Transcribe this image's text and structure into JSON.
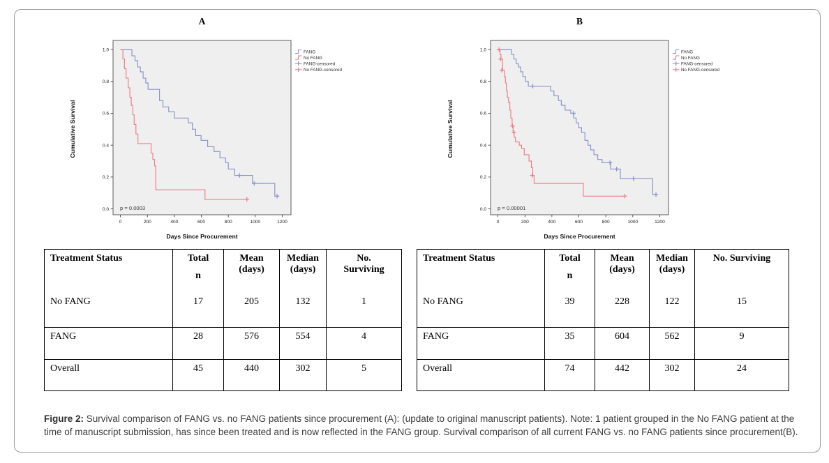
{
  "accent_colors": {
    "fang_blue": "#8894c9",
    "no_fang_red": "#ee7d87",
    "plot_bg": "#efefef",
    "plot_border": "#4d4d4d"
  },
  "chart_data": [
    {
      "type": "line",
      "panel_label": "A",
      "title": "A",
      "xlabel": "Days Since Procurement",
      "ylabel": "Cumulative Survival",
      "p_value": "p = 0.0003",
      "x_ticks": [
        0,
        200,
        400,
        600,
        800,
        1000,
        1200
      ],
      "y_ticks": [
        "0.0",
        "0.2",
        "0.4",
        "0.6",
        "0.8",
        "1.0"
      ],
      "xlim": [
        -55,
        1265
      ],
      "ylim": [
        0,
        1
      ],
      "grid": false,
      "legend_position": "right-top",
      "legend": [
        "FANG",
        "No FANG",
        "FANG-censored",
        "No FANG-censored"
      ],
      "series": [
        {
          "name": "FANG",
          "color": "#8894c9",
          "points": [
            [
              0,
              1.0
            ],
            [
              85,
              1.0
            ],
            [
              85,
              0.96
            ],
            [
              108,
              0.96
            ],
            [
              108,
              0.93
            ],
            [
              128,
              0.93
            ],
            [
              128,
              0.89
            ],
            [
              148,
              0.89
            ],
            [
              148,
              0.86
            ],
            [
              168,
              0.86
            ],
            [
              168,
              0.82
            ],
            [
              188,
              0.82
            ],
            [
              188,
              0.79
            ],
            [
              205,
              0.79
            ],
            [
              205,
              0.75
            ],
            [
              290,
              0.75
            ],
            [
              290,
              0.68
            ],
            [
              315,
              0.68
            ],
            [
              315,
              0.64
            ],
            [
              358,
              0.64
            ],
            [
              358,
              0.61
            ],
            [
              400,
              0.61
            ],
            [
              400,
              0.57
            ],
            [
              503,
              0.57
            ],
            [
              503,
              0.54
            ],
            [
              533,
              0.54
            ],
            [
              533,
              0.5
            ],
            [
              558,
              0.5
            ],
            [
              558,
              0.46
            ],
            [
              598,
              0.46
            ],
            [
              598,
              0.43
            ],
            [
              647,
              0.43
            ],
            [
              647,
              0.39
            ],
            [
              694,
              0.39
            ],
            [
              694,
              0.36
            ],
            [
              738,
              0.36
            ],
            [
              738,
              0.32
            ],
            [
              780,
              0.32
            ],
            [
              780,
              0.29
            ],
            [
              800,
              0.29
            ],
            [
              800,
              0.25
            ],
            [
              848,
              0.25
            ],
            [
              848,
              0.21
            ],
            [
              980,
              0.21
            ],
            [
              980,
              0.16
            ],
            [
              1145,
              0.16
            ],
            [
              1145,
              0.08
            ],
            [
              1168,
              0.08
            ]
          ],
          "censors": [
            [
              883,
              0.21
            ],
            [
              992,
              0.16
            ],
            [
              1162,
              0.08
            ]
          ]
        },
        {
          "name": "No FANG",
          "color": "#ee7d87",
          "points": [
            [
              0,
              1.0
            ],
            [
              18,
              1.0
            ],
            [
              18,
              0.94
            ],
            [
              30,
              0.94
            ],
            [
              30,
              0.88
            ],
            [
              42,
              0.88
            ],
            [
              42,
              0.82
            ],
            [
              58,
              0.82
            ],
            [
              58,
              0.76
            ],
            [
              70,
              0.76
            ],
            [
              70,
              0.7
            ],
            [
              80,
              0.7
            ],
            [
              80,
              0.65
            ],
            [
              92,
              0.65
            ],
            [
              92,
              0.59
            ],
            [
              102,
              0.59
            ],
            [
              102,
              0.53
            ],
            [
              115,
              0.53
            ],
            [
              115,
              0.47
            ],
            [
              130,
              0.47
            ],
            [
              130,
              0.41
            ],
            [
              227,
              0.41
            ],
            [
              227,
              0.35
            ],
            [
              240,
              0.35
            ],
            [
              240,
              0.31
            ],
            [
              253,
              0.31
            ],
            [
              253,
              0.27
            ],
            [
              262,
              0.27
            ],
            [
              262,
              0.12
            ],
            [
              627,
              0.12
            ],
            [
              627,
              0.06
            ],
            [
              940,
              0.06
            ]
          ],
          "censors": [
            [
              938,
              0.06
            ]
          ]
        }
      ]
    },
    {
      "type": "line",
      "panel_label": "B",
      "title": "B",
      "xlabel": "Days Since Procurement",
      "ylabel": "Cumulative Survival",
      "p_value": "p = 0.00001",
      "x_ticks": [
        0,
        200,
        400,
        600,
        800,
        1000,
        1200
      ],
      "y_ticks": [
        "0.0",
        "0.2",
        "0.4",
        "0.6",
        "0.8",
        "1.0"
      ],
      "xlim": [
        -55,
        1265
      ],
      "ylim": [
        0,
        1
      ],
      "grid": false,
      "legend_position": "right-top",
      "legend": [
        "FANG",
        "No FANG",
        "FANG-censored",
        "No FANG-censored"
      ],
      "series": [
        {
          "name": "FANG",
          "color": "#8894c9",
          "points": [
            [
              0,
              1.0
            ],
            [
              100,
              1.0
            ],
            [
              100,
              0.97
            ],
            [
              118,
              0.97
            ],
            [
              118,
              0.94
            ],
            [
              135,
              0.94
            ],
            [
              135,
              0.91
            ],
            [
              152,
              0.91
            ],
            [
              152,
              0.89
            ],
            [
              168,
              0.89
            ],
            [
              168,
              0.86
            ],
            [
              185,
              0.86
            ],
            [
              185,
              0.83
            ],
            [
              205,
              0.83
            ],
            [
              205,
              0.8
            ],
            [
              225,
              0.8
            ],
            [
              225,
              0.77
            ],
            [
              390,
              0.77
            ],
            [
              390,
              0.74
            ],
            [
              415,
              0.74
            ],
            [
              415,
              0.71
            ],
            [
              448,
              0.71
            ],
            [
              448,
              0.68
            ],
            [
              470,
              0.68
            ],
            [
              470,
              0.65
            ],
            [
              498,
              0.65
            ],
            [
              498,
              0.62
            ],
            [
              540,
              0.62
            ],
            [
              540,
              0.6
            ],
            [
              562,
              0.6
            ],
            [
              562,
              0.57
            ],
            [
              580,
              0.57
            ],
            [
              580,
              0.54
            ],
            [
              598,
              0.54
            ],
            [
              598,
              0.51
            ],
            [
              620,
              0.51
            ],
            [
              620,
              0.48
            ],
            [
              645,
              0.48
            ],
            [
              645,
              0.43
            ],
            [
              668,
              0.43
            ],
            [
              668,
              0.4
            ],
            [
              688,
              0.4
            ],
            [
              688,
              0.37
            ],
            [
              712,
              0.37
            ],
            [
              712,
              0.34
            ],
            [
              740,
              0.34
            ],
            [
              740,
              0.31
            ],
            [
              772,
              0.31
            ],
            [
              772,
              0.29
            ],
            [
              835,
              0.29
            ],
            [
              835,
              0.25
            ],
            [
              908,
              0.25
            ],
            [
              908,
              0.19
            ],
            [
              1148,
              0.19
            ],
            [
              1148,
              0.09
            ],
            [
              1178,
              0.09
            ]
          ],
          "censors": [
            [
              258,
              0.77
            ],
            [
              560,
              0.6
            ],
            [
              831,
              0.29
            ],
            [
              880,
              0.25
            ],
            [
              1005,
              0.19
            ],
            [
              1172,
              0.09
            ]
          ]
        },
        {
          "name": "No FANG",
          "color": "#ee7d87",
          "points": [
            [
              0,
              1.0
            ],
            [
              15,
              1.0
            ],
            [
              15,
              0.97
            ],
            [
              22,
              0.97
            ],
            [
              22,
              0.94
            ],
            [
              35,
              0.94
            ],
            [
              35,
              0.87
            ],
            [
              48,
              0.87
            ],
            [
              48,
              0.83
            ],
            [
              55,
              0.83
            ],
            [
              55,
              0.79
            ],
            [
              62,
              0.79
            ],
            [
              62,
              0.74
            ],
            [
              70,
              0.74
            ],
            [
              70,
              0.7
            ],
            [
              78,
              0.7
            ],
            [
              78,
              0.67
            ],
            [
              88,
              0.67
            ],
            [
              88,
              0.62
            ],
            [
              95,
              0.62
            ],
            [
              95,
              0.57
            ],
            [
              105,
              0.57
            ],
            [
              105,
              0.52
            ],
            [
              112,
              0.52
            ],
            [
              112,
              0.48
            ],
            [
              120,
              0.48
            ],
            [
              120,
              0.45
            ],
            [
              130,
              0.45
            ],
            [
              130,
              0.42
            ],
            [
              158,
              0.42
            ],
            [
              158,
              0.4
            ],
            [
              175,
              0.4
            ],
            [
              175,
              0.38
            ],
            [
              195,
              0.38
            ],
            [
              195,
              0.34
            ],
            [
              230,
              0.34
            ],
            [
              230,
              0.3
            ],
            [
              248,
              0.3
            ],
            [
              248,
              0.26
            ],
            [
              258,
              0.26
            ],
            [
              258,
              0.21
            ],
            [
              268,
              0.21
            ],
            [
              268,
              0.16
            ],
            [
              633,
              0.16
            ],
            [
              633,
              0.08
            ],
            [
              944,
              0.08
            ]
          ],
          "censors": [
            [
              8,
              1.0
            ],
            [
              20,
              0.94
            ],
            [
              28,
              0.87
            ],
            [
              108,
              0.52
            ],
            [
              118,
              0.48
            ],
            [
              255,
              0.21
            ],
            [
              940,
              0.08
            ]
          ]
        }
      ]
    }
  ],
  "tables": [
    {
      "header": {
        "col0": "Treatment Status",
        "total_l1": "Total",
        "total_l2": "n",
        "mean_l1": "Mean",
        "mean_l2": "(days)",
        "median_l1": "Median",
        "median_l2": "(days)",
        "surv_l1": "No.",
        "surv_l2": "Surviving"
      },
      "rows": [
        {
          "label": "No FANG",
          "total": "17",
          "mean": "205",
          "median": "132",
          "surviving": "1"
        },
        {
          "label": "FANG",
          "total": "28",
          "mean": "576",
          "median": "554",
          "surviving": "4"
        },
        {
          "label": "Overall",
          "total": "45",
          "mean": "440",
          "median": "302",
          "surviving": "5"
        }
      ]
    },
    {
      "header": {
        "col0": "Treatment Status",
        "total_l1": "Total",
        "total_l2": "n",
        "mean_l1": "Mean",
        "mean_l2": "(days)",
        "median_l1": "Median",
        "median_l2": "(days)",
        "surv_l1": "No. Surviving",
        "surv_l2": ""
      },
      "rows": [
        {
          "label": "No FANG",
          "total": "39",
          "mean": "228",
          "median": "122",
          "surviving": "15"
        },
        {
          "label": "FANG",
          "total": "35",
          "mean": "604",
          "median": "562",
          "surviving": "9"
        },
        {
          "label": "Overall",
          "total": "74",
          "mean": "442",
          "median": "302",
          "surviving": "24"
        }
      ]
    }
  ],
  "caption": {
    "label": "Figure 2:",
    "text": " Survival comparison of FANG vs. no FANG patients since procurement (A): (update to original manuscript patients).  Note:  1 patient grouped in the No FANG patient at the time of manuscript submission, has since been treated and is now reflected in the FANG group. Survival comparison of all current FANG vs. no FANG patients since procurement(B)."
  }
}
